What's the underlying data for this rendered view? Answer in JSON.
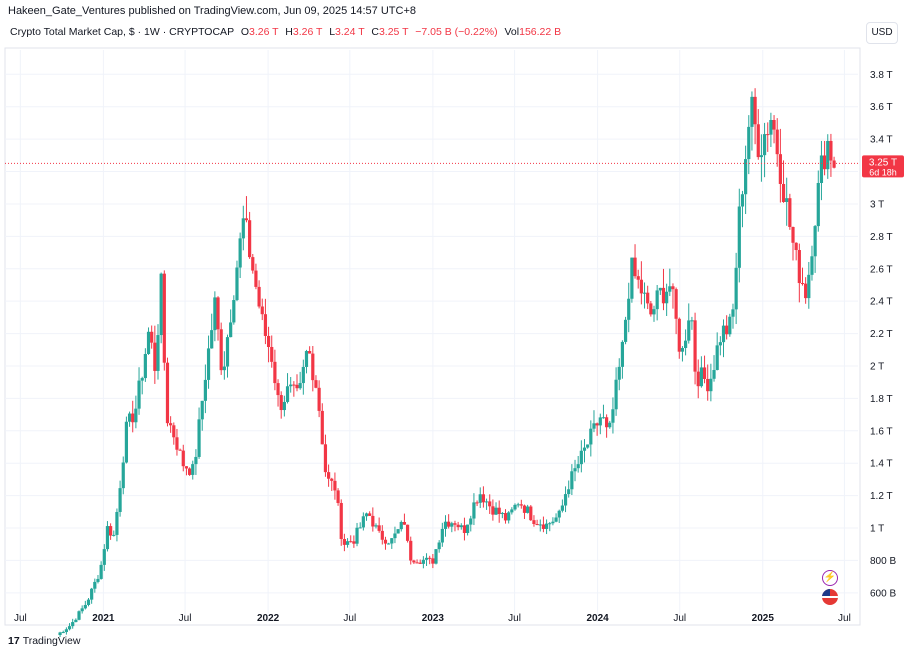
{
  "header": {
    "publisher": "Hakeen_Gate_Ventures published on TradingView.com, Jun 09, 2025 14:57 UTC+8"
  },
  "legend": {
    "symbol": "Crypto Total Market Cap, $ · 1W · CRYPTOCAP",
    "o_label": "O",
    "o_value": "3.26 T",
    "h_label": "H",
    "h_value": "3.26 T",
    "l_label": "L",
    "l_value": "3.24 T",
    "c_label": "C",
    "c_value": "3.25 T",
    "change": "−7.05 B (−0.22%)",
    "vol_label": "Vol",
    "vol_value": "156.22 B"
  },
  "toolbar": {
    "currency": "USD"
  },
  "footer": {
    "brand": "TradingView",
    "logo_glyph": "17"
  },
  "icons": {
    "flash": "flash-icon",
    "flag": "us-flag-icon"
  },
  "colors": {
    "up": "#26a69a",
    "down": "#f23645",
    "grid": "#f0f3fa",
    "text": "#131722"
  },
  "chart_data": {
    "type": "candlestick",
    "title": "Crypto Total Market Cap, $ · 1W · CRYPTOCAP",
    "x_tick_labels": [
      "Jul",
      "2021",
      "Jul",
      "2022",
      "Jul",
      "2023",
      "Jul",
      "2024",
      "Jul",
      "2025",
      "Jul"
    ],
    "x_tick_dates": [
      "2020-07-01",
      "2021-01-01",
      "2021-07-01",
      "2022-01-01",
      "2022-07-01",
      "2023-01-01",
      "2023-07-01",
      "2024-01-01",
      "2024-07-01",
      "2025-01-01",
      "2025-07-01"
    ],
    "y_tick_labels": [
      "600 B",
      "800 B",
      "1 T",
      "1.2 T",
      "1.4 T",
      "1.6 T",
      "1.8 T",
      "2 T",
      "2.2 T",
      "2.4 T",
      "2.6 T",
      "2.8 T",
      "3 T",
      "3.2 T",
      "3.4 T",
      "3.6 T",
      "3.8 T"
    ],
    "y_tick_values": [
      0.6,
      0.8,
      1.0,
      1.2,
      1.4,
      1.6,
      1.8,
      2.0,
      2.2,
      2.4,
      2.6,
      2.8,
      3.0,
      3.2,
      3.4,
      3.6,
      3.8
    ],
    "ylim": [
      0.42,
      3.95
    ],
    "y_unit": "trillion USD",
    "last_price": {
      "value": 3.25,
      "label": "3.25 T",
      "countdown": "6d 18h"
    },
    "anchors": [
      [
        "2020-09-20",
        0.34
      ],
      [
        "2020-10-20",
        0.4
      ],
      [
        "2020-11-25",
        0.54
      ],
      [
        "2020-12-25",
        0.74
      ],
      [
        "2021-01-10",
        1.0
      ],
      [
        "2021-01-25",
        0.95
      ],
      [
        "2021-02-20",
        1.6
      ],
      [
        "2021-03-15",
        1.75
      ],
      [
        "2021-04-12",
        2.22
      ],
      [
        "2021-04-25",
        2.0
      ],
      [
        "2021-05-10",
        2.52
      ],
      [
        "2021-05-20",
        1.7
      ],
      [
        "2021-06-10",
        1.55
      ],
      [
        "2021-06-25",
        1.4
      ],
      [
        "2021-07-20",
        1.35
      ],
      [
        "2021-08-15",
        1.95
      ],
      [
        "2021-09-05",
        2.38
      ],
      [
        "2021-09-22",
        1.95
      ],
      [
        "2021-10-20",
        2.55
      ],
      [
        "2021-11-08",
        2.9
      ],
      [
        "2021-11-28",
        2.6
      ],
      [
        "2021-12-20",
        2.25
      ],
      [
        "2022-01-10",
        2.05
      ],
      [
        "2022-01-25",
        1.75
      ],
      [
        "2022-02-15",
        1.85
      ],
      [
        "2022-03-10",
        1.8
      ],
      [
        "2022-03-30",
        2.12
      ],
      [
        "2022-04-20",
        1.85
      ],
      [
        "2022-05-10",
        1.3
      ],
      [
        "2022-05-30",
        1.25
      ],
      [
        "2022-06-15",
        0.9
      ],
      [
        "2022-07-10",
        0.93
      ],
      [
        "2022-08-10",
        1.1
      ],
      [
        "2022-09-05",
        0.95
      ],
      [
        "2022-10-01",
        0.92
      ],
      [
        "2022-10-30",
        1.04
      ],
      [
        "2022-11-10",
        0.82
      ],
      [
        "2022-12-31",
        0.79
      ],
      [
        "2023-01-25",
        1.04
      ],
      [
        "2023-02-20",
        1.04
      ],
      [
        "2023-03-10",
        0.98
      ],
      [
        "2023-04-05",
        1.17
      ],
      [
        "2023-04-15",
        1.22
      ],
      [
        "2023-05-10",
        1.13
      ],
      [
        "2023-06-15",
        1.05
      ],
      [
        "2023-07-10",
        1.17
      ],
      [
        "2023-08-15",
        1.05
      ],
      [
        "2023-09-10",
        1.02
      ],
      [
        "2023-10-10",
        1.08
      ],
      [
        "2023-10-25",
        1.25
      ],
      [
        "2023-11-20",
        1.4
      ],
      [
        "2023-12-20",
        1.58
      ],
      [
        "2024-01-10",
        1.7
      ],
      [
        "2024-01-25",
        1.55
      ],
      [
        "2024-02-25",
        2.1
      ],
      [
        "2024-03-14",
        2.6
      ],
      [
        "2024-04-10",
        2.45
      ],
      [
        "2024-04-25",
        2.3
      ],
      [
        "2024-05-20",
        2.45
      ],
      [
        "2024-06-10",
        2.5
      ],
      [
        "2024-07-05",
        2.05
      ],
      [
        "2024-07-25",
        2.4
      ],
      [
        "2024-08-05",
        1.95
      ],
      [
        "2024-09-05",
        1.9
      ],
      [
        "2024-09-30",
        2.2
      ],
      [
        "2024-10-25",
        2.25
      ],
      [
        "2024-11-12",
        3.0
      ],
      [
        "2024-12-05",
        3.6
      ],
      [
        "2024-12-25",
        3.35
      ],
      [
        "2025-01-20",
        3.55
      ],
      [
        "2025-02-05",
        3.3
      ],
      [
        "2025-02-25",
        2.95
      ],
      [
        "2025-03-15",
        2.65
      ],
      [
        "2025-04-08",
        2.45
      ],
      [
        "2025-04-25",
        2.9
      ],
      [
        "2025-05-15",
        3.3
      ],
      [
        "2025-05-25",
        3.38
      ],
      [
        "2025-06-09",
        3.25
      ]
    ]
  }
}
